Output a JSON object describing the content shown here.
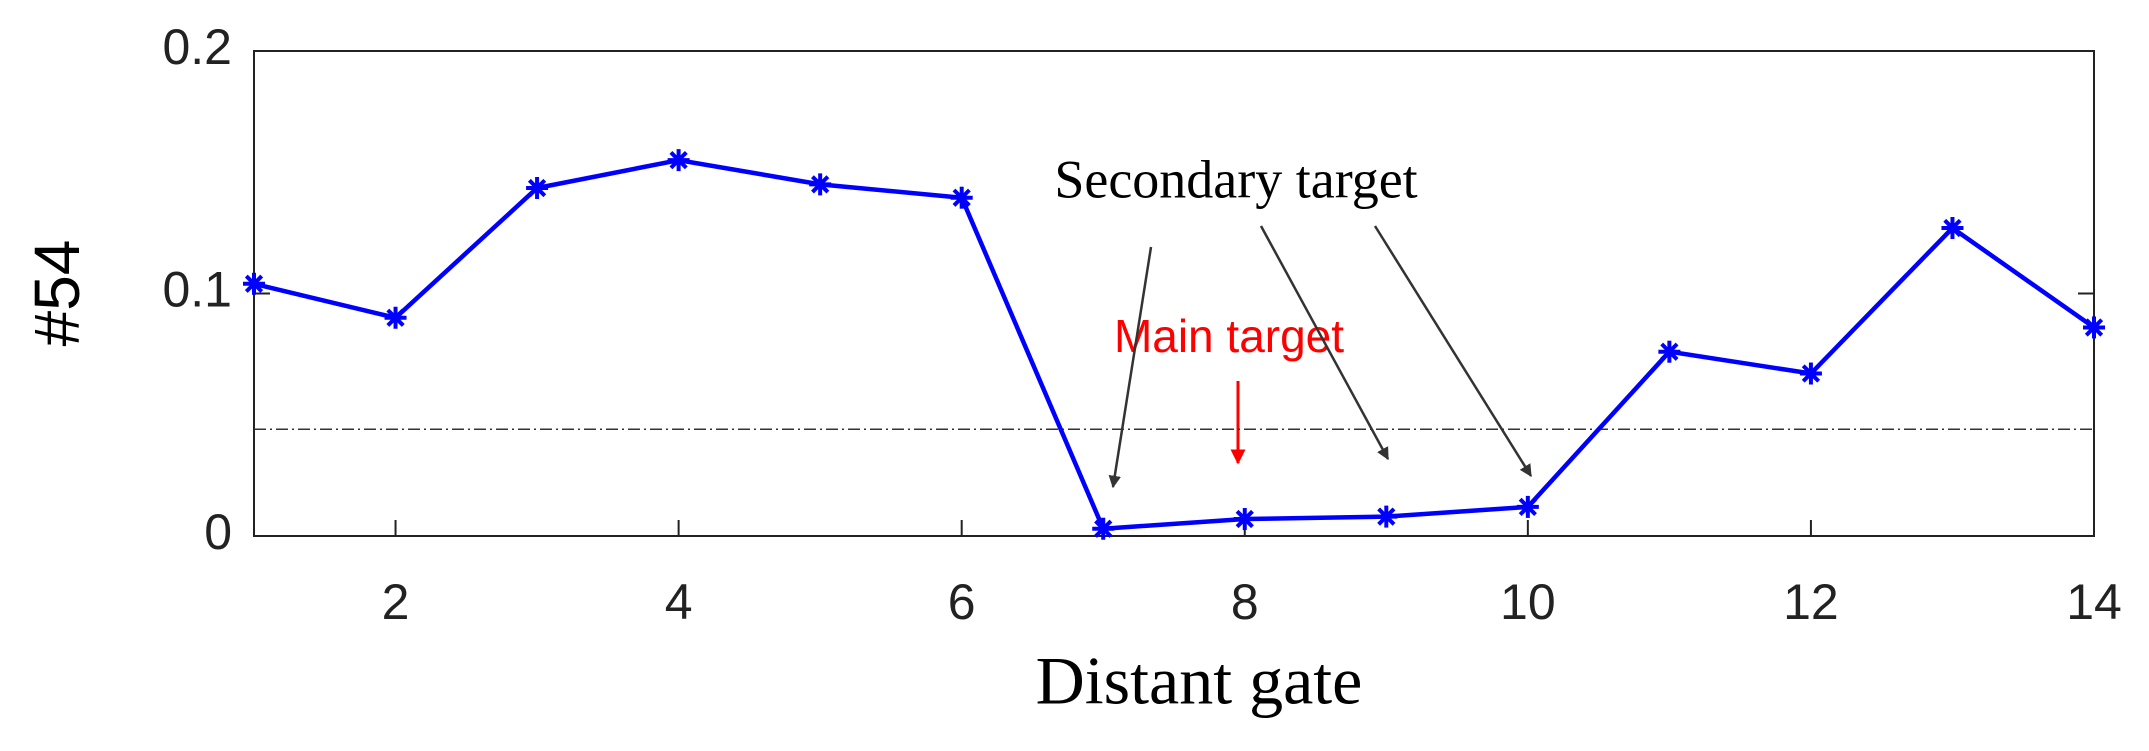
{
  "chart_data": {
    "type": "line",
    "x": [
      1,
      2,
      3,
      4,
      5,
      6,
      7,
      8,
      9,
      10,
      11,
      12,
      13,
      14
    ],
    "series": [
      {
        "color": "#0000ff",
        "values": [
          0.104,
          0.09,
          0.1435,
          0.155,
          0.145,
          0.1395,
          0.003,
          0.007,
          0.008,
          0.012,
          0.076,
          0.067,
          0.127,
          0.086
        ]
      }
    ],
    "threshold": 0.044,
    "xlim": [
      1,
      14
    ],
    "xticks": [
      2,
      4,
      6,
      8,
      10,
      12,
      14
    ],
    "ylim": [
      0,
      0.2
    ],
    "yticks": [
      0,
      0.1,
      0.2
    ],
    "xlabel": "Distant gate",
    "ylabel": "#54",
    "annotations": [
      "Secondary target",
      "Main target"
    ]
  }
}
